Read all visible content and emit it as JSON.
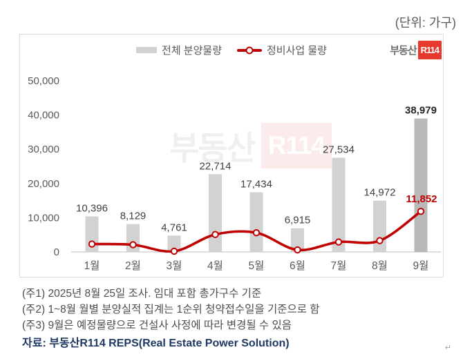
{
  "unit_label": "(단위: 가구)",
  "logo": {
    "text": "부동산",
    "badge": "R114"
  },
  "watermark": {
    "text": "부동산",
    "badge": "R114"
  },
  "chart_data": {
    "type": "bar",
    "subtype": "bar+line combo",
    "categories": [
      "1월",
      "2월",
      "3월",
      "4월",
      "5월",
      "6월",
      "7월",
      "8월",
      "9월"
    ],
    "series": [
      {
        "name": "전체 분양물량",
        "type": "bar",
        "values": [
          10396,
          8129,
          4761,
          22714,
          17434,
          6915,
          27534,
          14972,
          38979
        ],
        "labels": [
          "10,396",
          "8,129",
          "4,761",
          "22,714",
          "17,434",
          "6,915",
          "27,534",
          "14,972",
          "38,979"
        ]
      },
      {
        "name": "정비사업 물량",
        "type": "line",
        "values": [
          2300,
          2100,
          200,
          5100,
          5600,
          600,
          2900,
          3300,
          11852
        ],
        "visible_label": {
          "category": "9월",
          "index": 8,
          "text": "11,852"
        }
      }
    ],
    "title": "",
    "xlabel": "",
    "ylabel": "",
    "ylim": [
      0,
      50000
    ],
    "ytick_values": [
      0,
      10000,
      20000,
      30000,
      40000,
      50000
    ],
    "ytick_labels": [
      "0",
      "10,000",
      "20,000",
      "30,000",
      "40,000",
      "50,000"
    ],
    "grid": false,
    "legend_position": "top-center",
    "highlight_last_bar": true
  },
  "colors": {
    "bar": "#d2d2d2",
    "bar_highlight": "#b9b9b9",
    "line": "#c00000",
    "value_label": "#404040",
    "value_label_highlight": "#262626",
    "axis_text": "#595959",
    "axis_line": "#c9c9c9",
    "border": "#dcdcdc",
    "note_text": "#4d4d4d",
    "source_text": "#1f3864",
    "logo_red": "#e8392f",
    "logo_gray": "#6e6f72",
    "watermark_gray": "#f0efef",
    "watermark_pink": "#fcebeb"
  },
  "notes": [
    "(주1) 2025년 8월 25일 조사. 임대 포함 총가구수 기준",
    "(주2) 1~8월 월별 분양실적 집계는 1순위 청약접수일을 기준으로 함",
    "(주3) 9월은 예정물량으로 건설사 사정에 따라 변경될 수 있음"
  ],
  "source": "자료: 부동산R114 REPS(Real Estate Power Solution)",
  "artifact": {
    "return_mark": "↵"
  }
}
